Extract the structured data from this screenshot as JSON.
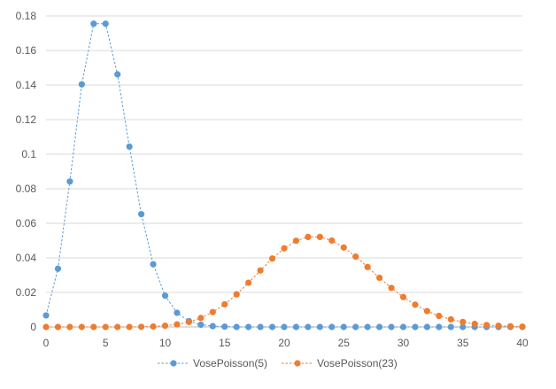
{
  "chart_data": {
    "type": "line",
    "title": "",
    "xlabel": "",
    "ylabel": "",
    "xlim": [
      0,
      40
    ],
    "ylim": [
      0,
      0.18
    ],
    "x_ticks": [
      0,
      5,
      10,
      15,
      20,
      25,
      30,
      35,
      40
    ],
    "y_ticks": [
      0,
      0.02,
      0.04,
      0.06,
      0.08,
      0.1,
      0.12,
      0.14,
      0.16,
      0.18
    ],
    "y_tick_labels": [
      "0",
      "0.02",
      "0.04",
      "0.06",
      "0.08",
      "0.1",
      "0.12",
      "0.14",
      "0.16",
      "0.18"
    ],
    "grid": true,
    "legend_position": "bottom",
    "x": [
      0,
      1,
      2,
      3,
      4,
      5,
      6,
      7,
      8,
      9,
      10,
      11,
      12,
      13,
      14,
      15,
      16,
      17,
      18,
      19,
      20,
      21,
      22,
      23,
      24,
      25,
      26,
      27,
      28,
      29,
      30,
      31,
      32,
      33,
      34,
      35,
      36,
      37,
      38,
      39,
      40
    ],
    "series": [
      {
        "name": "VosePoisson(5)",
        "color": "#5B9BD5",
        "values": [
          0.0067,
          0.0337,
          0.0842,
          0.1404,
          0.1755,
          0.1755,
          0.1462,
          0.1044,
          0.0653,
          0.0363,
          0.0181,
          0.0082,
          0.0034,
          0.0013,
          0.0005,
          0.0002,
          0.0,
          0.0,
          0.0,
          0.0,
          0.0,
          0.0,
          0.0,
          0.0,
          0.0,
          0.0,
          0.0,
          0.0,
          0.0,
          0.0,
          0.0,
          0.0,
          0.0,
          0.0,
          0.0,
          0.0,
          0.0,
          0.0,
          0.0,
          0.0,
          0.0
        ]
      },
      {
        "name": "VosePoisson(23)",
        "color": "#ED7D31",
        "values": [
          0.0,
          0.0,
          0.0,
          0.0,
          0.0,
          0.0,
          0.0,
          0.0,
          0.0001,
          0.0003,
          0.0007,
          0.0015,
          0.0029,
          0.0052,
          0.0086,
          0.0131,
          0.0189,
          0.0256,
          0.0327,
          0.0396,
          0.0455,
          0.0499,
          0.0521,
          0.0521,
          0.05,
          0.046,
          0.0407,
          0.0347,
          0.0285,
          0.0226,
          0.0173,
          0.0129,
          0.0092,
          0.0064,
          0.0044,
          0.0029,
          0.0018,
          0.0011,
          0.0007,
          0.0004,
          0.0002
        ]
      }
    ]
  }
}
